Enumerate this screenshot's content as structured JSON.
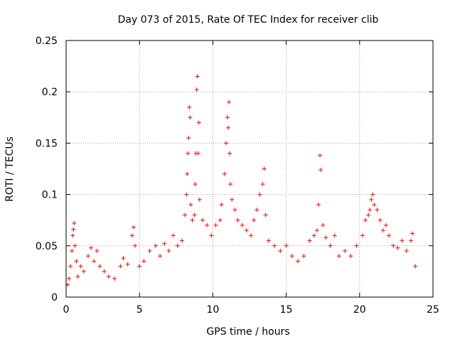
{
  "chart_data": {
    "type": "scatter",
    "title": "Day 073 of 2015, Rate Of TEC Index for receiver clib",
    "xlabel": "GPS time / hours",
    "ylabel": "ROTI / TECUs",
    "xlim": [
      0,
      25
    ],
    "ylim": [
      0,
      0.25
    ],
    "xticks": [
      0,
      5,
      10,
      15,
      20,
      25
    ],
    "yticks": [
      0,
      0.05,
      0.1,
      0.15,
      0.2,
      0.25
    ],
    "xtick_labels": [
      "0",
      "5",
      "10",
      "15",
      "20",
      "25"
    ],
    "ytick_labels": [
      "0",
      "0.05",
      "0.1",
      "0.15",
      "0.2",
      "0.25"
    ],
    "grid": true,
    "marker": "+",
    "marker_color": "#ff0000",
    "series": [
      {
        "name": "ROTI",
        "points": [
          [
            0.1,
            0.012
          ],
          [
            0.2,
            0.018
          ],
          [
            0.3,
            0.03
          ],
          [
            0.4,
            0.045
          ],
          [
            0.45,
            0.06
          ],
          [
            0.5,
            0.066
          ],
          [
            0.55,
            0.072
          ],
          [
            0.6,
            0.05
          ],
          [
            0.7,
            0.035
          ],
          [
            0.8,
            0.02
          ],
          [
            1.0,
            0.03
          ],
          [
            1.2,
            0.025
          ],
          [
            1.5,
            0.04
          ],
          [
            1.7,
            0.048
          ],
          [
            1.9,
            0.035
          ],
          [
            2.1,
            0.045
          ],
          [
            2.3,
            0.03
          ],
          [
            2.6,
            0.025
          ],
          [
            2.9,
            0.02
          ],
          [
            3.3,
            0.018
          ],
          [
            3.7,
            0.03
          ],
          [
            3.9,
            0.038
          ],
          [
            4.2,
            0.032
          ],
          [
            4.5,
            0.06
          ],
          [
            4.6,
            0.068
          ],
          [
            4.7,
            0.05
          ],
          [
            5.0,
            0.03
          ],
          [
            5.3,
            0.035
          ],
          [
            5.7,
            0.045
          ],
          [
            6.1,
            0.05
          ],
          [
            6.4,
            0.04
          ],
          [
            6.7,
            0.052
          ],
          [
            7.0,
            0.045
          ],
          [
            7.3,
            0.06
          ],
          [
            7.6,
            0.05
          ],
          [
            7.9,
            0.055
          ],
          [
            8.1,
            0.08
          ],
          [
            8.2,
            0.1
          ],
          [
            8.25,
            0.12
          ],
          [
            8.3,
            0.14
          ],
          [
            8.35,
            0.155
          ],
          [
            8.4,
            0.185
          ],
          [
            8.45,
            0.175
          ],
          [
            8.5,
            0.09
          ],
          [
            8.6,
            0.075
          ],
          [
            8.75,
            0.08
          ],
          [
            8.8,
            0.11
          ],
          [
            8.85,
            0.14
          ],
          [
            8.9,
            0.202
          ],
          [
            8.95,
            0.215
          ],
          [
            9.0,
            0.14
          ],
          [
            9.05,
            0.17
          ],
          [
            9.1,
            0.095
          ],
          [
            9.3,
            0.075
          ],
          [
            9.6,
            0.07
          ],
          [
            9.9,
            0.06
          ],
          [
            10.2,
            0.07
          ],
          [
            10.5,
            0.075
          ],
          [
            10.6,
            0.09
          ],
          [
            10.8,
            0.12
          ],
          [
            10.9,
            0.15
          ],
          [
            11.0,
            0.175
          ],
          [
            11.05,
            0.165
          ],
          [
            11.1,
            0.19
          ],
          [
            11.15,
            0.14
          ],
          [
            11.2,
            0.11
          ],
          [
            11.3,
            0.095
          ],
          [
            11.5,
            0.085
          ],
          [
            11.7,
            0.075
          ],
          [
            12.0,
            0.07
          ],
          [
            12.3,
            0.065
          ],
          [
            12.6,
            0.06
          ],
          [
            12.8,
            0.075
          ],
          [
            13.0,
            0.085
          ],
          [
            13.2,
            0.1
          ],
          [
            13.4,
            0.11
          ],
          [
            13.5,
            0.125
          ],
          [
            13.6,
            0.08
          ],
          [
            13.8,
            0.055
          ],
          [
            14.2,
            0.05
          ],
          [
            14.6,
            0.045
          ],
          [
            15.0,
            0.05
          ],
          [
            15.4,
            0.04
          ],
          [
            15.8,
            0.035
          ],
          [
            16.2,
            0.04
          ],
          [
            16.6,
            0.055
          ],
          [
            16.9,
            0.06
          ],
          [
            17.1,
            0.065
          ],
          [
            17.2,
            0.09
          ],
          [
            17.3,
            0.138
          ],
          [
            17.35,
            0.124
          ],
          [
            17.5,
            0.07
          ],
          [
            17.7,
            0.058
          ],
          [
            18.0,
            0.05
          ],
          [
            18.3,
            0.06
          ],
          [
            18.6,
            0.04
          ],
          [
            19.0,
            0.045
          ],
          [
            19.4,
            0.04
          ],
          [
            19.8,
            0.05
          ],
          [
            20.2,
            0.06
          ],
          [
            20.4,
            0.075
          ],
          [
            20.6,
            0.08
          ],
          [
            20.7,
            0.085
          ],
          [
            20.8,
            0.095
          ],
          [
            20.9,
            0.1
          ],
          [
            21.0,
            0.09
          ],
          [
            21.2,
            0.085
          ],
          [
            21.4,
            0.075
          ],
          [
            21.6,
            0.065
          ],
          [
            21.8,
            0.07
          ],
          [
            22.0,
            0.06
          ],
          [
            22.3,
            0.05
          ],
          [
            22.6,
            0.048
          ],
          [
            22.9,
            0.055
          ],
          [
            23.2,
            0.045
          ],
          [
            23.5,
            0.055
          ],
          [
            23.6,
            0.062
          ],
          [
            23.8,
            0.03
          ]
        ]
      }
    ]
  }
}
